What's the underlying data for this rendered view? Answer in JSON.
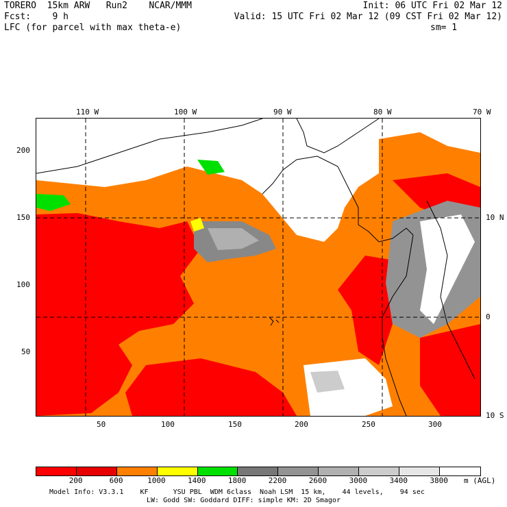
{
  "header": {
    "line1_left": "TORERO  15km ARW   Run2    NCAR/MMM",
    "line1_right": "Init: 06 UTC Fri 02 Mar 12",
    "line2_left": "Fcst:    9 h",
    "line2_right": "Valid: 15 UTC Fri 02 Mar 12 (09 CST Fri 02 Mar 12)",
    "line3_left": "LFC (for parcel with max theta-e)",
    "line3_right": "sm= 1"
  },
  "top_lon_labels": [
    "110 W",
    "100 W",
    "90 W",
    "80 W",
    "70 W"
  ],
  "left_grid_labels": [
    "200",
    "150",
    "100",
    "50"
  ],
  "right_lat_labels": [
    "10 N",
    "0",
    "10 S"
  ],
  "bottom_grid_labels": [
    "50",
    "100",
    "150",
    "200",
    "250",
    "300"
  ],
  "colorbar": {
    "colors": [
      "#ff0000",
      "#e60000",
      "#ff8000",
      "#ffff00",
      "#00e000",
      "#777777",
      "#939393",
      "#b0b0b0",
      "#cccccc",
      "#e6e6e6",
      "#ffffff"
    ],
    "labels": [
      "200",
      "600",
      "1000",
      "1400",
      "1800",
      "2200",
      "2600",
      "3000",
      "3400",
      "3800"
    ],
    "units": "m (AGL)"
  },
  "footer": {
    "line1": "Model Info: V3.3.1    KF      YSU PBL  WDM 6class  Noah LSM  15 km,    44 levels,    94 sec",
    "line2": "LW: Godd SW: Goddard DIFF: simple KM: 2D Smagor"
  }
}
